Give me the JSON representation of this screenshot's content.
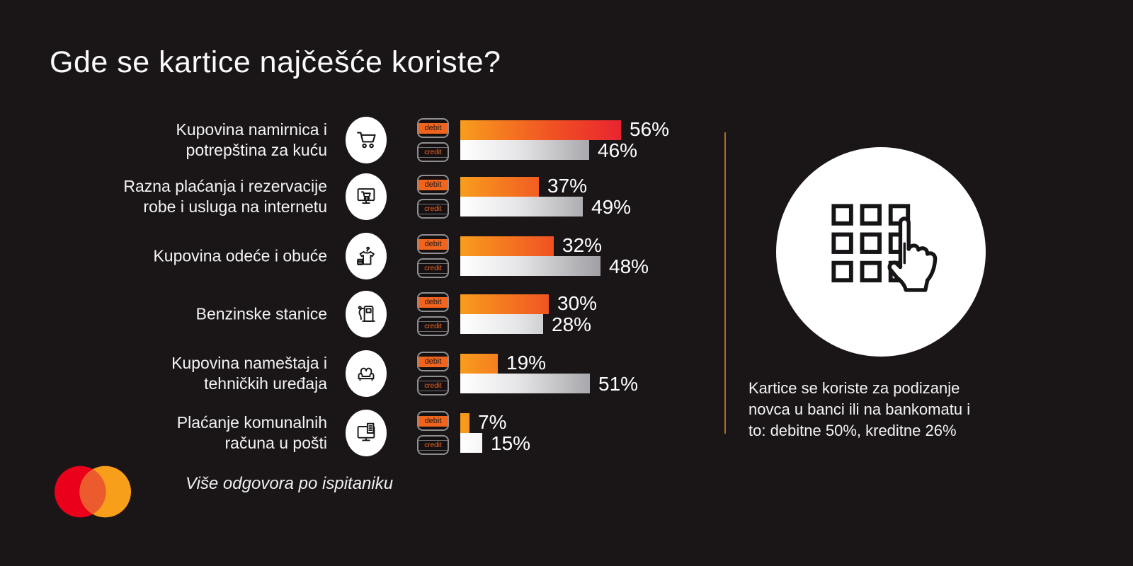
{
  "title": "Gde se kartice najčešće koriste?",
  "legend": {
    "debit": "debit",
    "credit": "credit"
  },
  "rows": [
    {
      "label": "Kupovina namirnica i\npotrepština za kuću",
      "icon": "shopping-cart",
      "debit_label": "56%",
      "credit_label": "46%"
    },
    {
      "label": "Razna plaćanja i rezervacije\nrobe i usluga na internetu",
      "icon": "online-shopping",
      "debit_label": "37%",
      "credit_label": "49%"
    },
    {
      "label": "Kupovina odeće i obuće",
      "icon": "clothing",
      "debit_label": "32%",
      "credit_label": "48%"
    },
    {
      "label": "Benzinske stanice",
      "icon": "fuel-pump",
      "debit_label": "30%",
      "credit_label": "28%"
    },
    {
      "label": "Kupovina nameštaja i\ntehničkih uređaja",
      "icon": "furniture",
      "debit_label": "19%",
      "credit_label": "51%"
    },
    {
      "label": "Plaćanje komunalnih\nračuna u pošti",
      "icon": "bill-payment",
      "debit_label": "7%",
      "credit_label": "15%"
    }
  ],
  "side_panel": {
    "icon": "atm-keypad-hand",
    "text": "Kartice se koriste za podizanje\nnovca u banci ili na bankomatu i\nto: debitne 50%, kreditne 26%"
  },
  "footer": {
    "note": "Više odgovora po ispitaniku",
    "brand": "Mastercard"
  },
  "chart_data": {
    "type": "bar",
    "orientation": "horizontal",
    "unit": "%",
    "title": "Gde se kartice najčešće koriste?",
    "categories": [
      "Kupovina namirnica i potrepština za kuću",
      "Razna plaćanja i rezervacije robe i usluga na internetu",
      "Kupovina odeće i obuće",
      "Benzinske stanice",
      "Kupovina nameštaja i tehničkih uređaja",
      "Plaćanje komunalnih računa u pošti"
    ],
    "series": [
      {
        "name": "debit",
        "values": [
          56,
          37,
          32,
          30,
          19,
          7
        ]
      },
      {
        "name": "credit",
        "values": [
          46,
          49,
          48,
          28,
          51,
          15
        ]
      }
    ],
    "side_note": "Kartice se koriste za podizanje novca u banci ili na bankomatu i to: debitne 50%, kreditne 26%",
    "footnote": "Više odgovora po ispitaniku",
    "xlim": [
      0,
      60
    ],
    "grid": false,
    "legend_position": "card-chips-left-of-bars"
  },
  "colors": {
    "background": "#1a1617",
    "debit_gradient_start": "#f89d1d",
    "debit_gradient_end": "#e92430",
    "credit_gradient_start": "#ffffff",
    "credit_gradient_end": "#97979c",
    "chip_orange": "#f1641e",
    "divider": "#a8701f",
    "mastercard_red": "#eb001b",
    "mastercard_orange": "#f79e1b",
    "mastercard_overlap": "#ec5b2d",
    "text": "#f4f4f4"
  }
}
